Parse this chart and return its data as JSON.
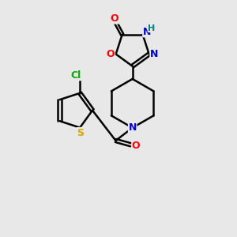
{
  "background_color": "#e8e8e8",
  "bond_color": "#000000",
  "atom_colors": {
    "O": "#ff0000",
    "N": "#0000cd",
    "H": "#008080",
    "Cl": "#00aa00",
    "S": "#ccaa00",
    "C": "#000000"
  }
}
